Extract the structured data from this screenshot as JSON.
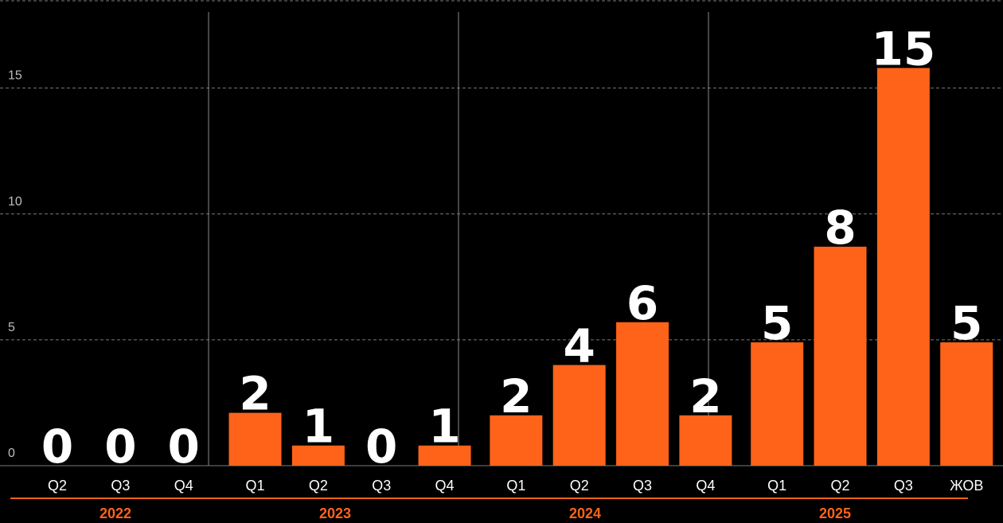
{
  "chart_data": {
    "type": "bar",
    "categories": [
      "Q2",
      "Q3",
      "Q4",
      "Q1",
      "Q2",
      "Q3",
      "Q4",
      "Q1",
      "Q2",
      "Q3",
      "Q4",
      "Q1",
      "Q2",
      "Q3",
      "ЖОВ"
    ],
    "values": [
      0,
      0,
      0,
      2,
      1,
      0,
      1,
      2,
      4,
      6,
      2,
      5,
      8,
      15,
      5
    ],
    "bar_heights": [
      0,
      0,
      0,
      2.1,
      0.8,
      0,
      0.8,
      2.0,
      4.0,
      5.7,
      2.0,
      4.9,
      8.7,
      15.8,
      4.9
    ],
    "groups": [
      {
        "label": "2022",
        "count": 3
      },
      {
        "label": "2023",
        "count": 4
      },
      {
        "label": "2024",
        "count": 4
      },
      {
        "label": "2025",
        "count": 4
      }
    ],
    "ylim": [
      0,
      18.5
    ],
    "yticks": [
      0,
      5,
      10,
      15
    ],
    "grid": true,
    "colors": {
      "bar": "#ff6319",
      "background": "#000000",
      "grid": "#7a7a7a",
      "group_line": "#ff6319"
    }
  }
}
